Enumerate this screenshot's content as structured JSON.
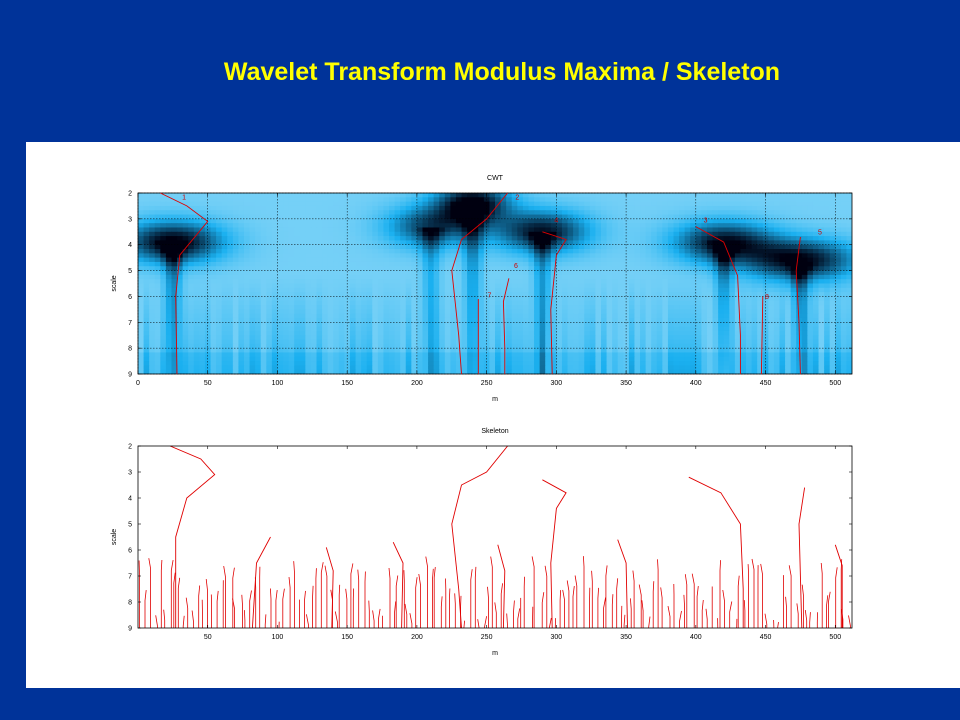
{
  "slide": {
    "title": "Wavelet Transform Modulus Maxima / Skeleton"
  },
  "colors": {
    "background": "#003399",
    "title": "#ffff00",
    "panel": "#ffffff",
    "maxima_line": "#e00000",
    "cwt_low": "#e8f8ff",
    "cwt_mid": "#1ab0f0",
    "cwt_high": "#000010"
  },
  "chart_data": [
    {
      "type": "heatmap",
      "title": "CWT",
      "xlabel": "m",
      "ylabel": "scale",
      "xlim": [
        0,
        512
      ],
      "ylim": [
        2,
        9
      ],
      "y_inverted": true,
      "grid": true,
      "xticks": [
        0,
        50,
        100,
        150,
        200,
        250,
        300,
        350,
        400,
        450,
        500
      ],
      "yticks": [
        2,
        3,
        4,
        5,
        6,
        7,
        8,
        9
      ],
      "blobs": [
        {
          "m": 25,
          "scale": 3.9,
          "strength": 1.0
        },
        {
          "m": 240,
          "scale": 2.4,
          "strength": 1.0
        },
        {
          "m": 290,
          "scale": 3.5,
          "strength": 0.9
        },
        {
          "m": 210,
          "scale": 3.3,
          "strength": 0.7
        },
        {
          "m": 420,
          "scale": 3.9,
          "strength": 0.9
        },
        {
          "m": 475,
          "scale": 4.6,
          "strength": 0.95
        }
      ],
      "maxima_labels": [
        {
          "label": "1",
          "m": 33,
          "scale": 2.25
        },
        {
          "label": "2",
          "m": 272,
          "scale": 2.25
        },
        {
          "label": "4",
          "m": 300,
          "scale": 3.15
        },
        {
          "label": "3",
          "m": 407,
          "scale": 3.15
        },
        {
          "label": "5",
          "m": 489,
          "scale": 3.6
        },
        {
          "label": "6",
          "m": 271,
          "scale": 4.9
        },
        {
          "label": "7",
          "m": 252,
          "scale": 6.05
        },
        {
          "label": "8",
          "m": 451,
          "scale": 6.1
        }
      ],
      "maxima_lines": [
        [
          [
            16,
            2.0
          ],
          [
            35,
            2.5
          ],
          [
            50,
            3.1
          ],
          [
            30,
            4.4
          ],
          [
            27,
            6.0
          ],
          [
            28,
            9.0
          ]
        ],
        [
          [
            265,
            2.0
          ],
          [
            250,
            3.0
          ],
          [
            232,
            3.8
          ],
          [
            225,
            5.0
          ],
          [
            230,
            7.5
          ],
          [
            232,
            9.0
          ]
        ],
        [
          [
            290,
            3.5
          ],
          [
            307,
            3.8
          ],
          [
            300,
            4.4
          ],
          [
            296,
            6.5
          ],
          [
            297,
            9.0
          ]
        ],
        [
          [
            400,
            3.3
          ],
          [
            420,
            3.9
          ],
          [
            430,
            5.2
          ],
          [
            432,
            7.5
          ],
          [
            432,
            9.0
          ]
        ],
        [
          [
            475,
            3.7
          ],
          [
            472,
            5.0
          ],
          [
            474,
            7.0
          ],
          [
            475,
            9.0
          ]
        ],
        [
          [
            266,
            5.3
          ],
          [
            262,
            6.2
          ],
          [
            263,
            8.0
          ],
          [
            263,
            9.0
          ]
        ],
        [
          [
            244,
            6.1
          ],
          [
            244,
            9.0
          ]
        ],
        [
          [
            448,
            6.0
          ],
          [
            447,
            9.0
          ]
        ]
      ]
    },
    {
      "type": "line",
      "title": "Skeleton",
      "xlabel": "m",
      "ylabel": "scale",
      "xlim": [
        0,
        512
      ],
      "ylim": [
        2,
        9
      ],
      "y_inverted": true,
      "grid": false,
      "xticks": [
        50,
        100,
        150,
        200,
        250,
        300,
        350,
        400,
        450,
        500
      ],
      "yticks": [
        2,
        3,
        4,
        5,
        6,
        7,
        8,
        9
      ],
      "main_lines": [
        [
          [
            23,
            2.0
          ],
          [
            45,
            2.5
          ],
          [
            55,
            3.1
          ],
          [
            35,
            4.0
          ],
          [
            27,
            5.5
          ],
          [
            27,
            9.0
          ]
        ],
        [
          [
            265,
            2.0
          ],
          [
            250,
            3.0
          ],
          [
            232,
            3.5
          ],
          [
            225,
            5.0
          ],
          [
            230,
            7.5
          ],
          [
            232,
            9.0
          ]
        ],
        [
          [
            290,
            3.3
          ],
          [
            307,
            3.8
          ],
          [
            300,
            4.4
          ],
          [
            296,
            6.5
          ],
          [
            297,
            9.0
          ]
        ],
        [
          [
            395,
            3.2
          ],
          [
            418,
            3.8
          ],
          [
            432,
            5.0
          ],
          [
            434,
            7.5
          ],
          [
            434,
            9.0
          ]
        ],
        [
          [
            478,
            3.6
          ],
          [
            474,
            5.0
          ],
          [
            475,
            7.0
          ],
          [
            476,
            9.0
          ]
        ],
        [
          [
            95,
            5.5
          ],
          [
            85,
            6.5
          ],
          [
            82,
            9.0
          ]
        ],
        [
          [
            258,
            5.8
          ],
          [
            263,
            6.8
          ],
          [
            262,
            9.0
          ]
        ],
        [
          [
            344,
            5.6
          ],
          [
            350,
            6.5
          ],
          [
            351,
            9.0
          ]
        ],
        [
          [
            135,
            5.9
          ],
          [
            140,
            6.8
          ],
          [
            139,
            9.0
          ]
        ],
        [
          [
            183,
            5.7
          ],
          [
            190,
            6.5
          ],
          [
            189,
            9.0
          ]
        ],
        [
          [
            500,
            5.8
          ],
          [
            505,
            6.6
          ],
          [
            505,
            9.0
          ]
        ]
      ],
      "short_lines_count": 150
    }
  ]
}
